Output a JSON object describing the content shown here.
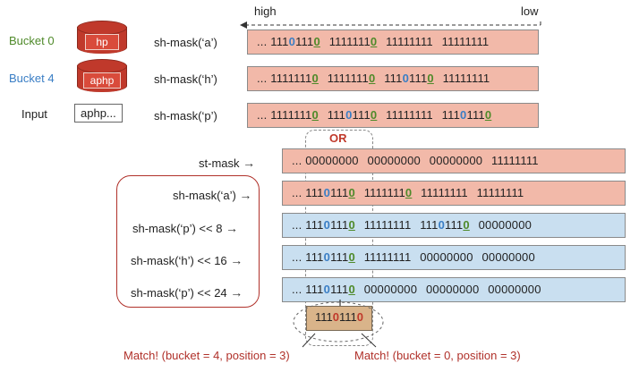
{
  "axis": {
    "high": "high",
    "low": "low"
  },
  "buckets": [
    {
      "label": "Bucket 0",
      "color": "#4f8a2a",
      "cyl_text": "hp"
    },
    {
      "label": "Bucket 4",
      "color": "#3a7ec5",
      "cyl_text": "aphp"
    }
  ],
  "input": {
    "label": "Input",
    "value": "aphp..."
  },
  "top_rows": [
    {
      "label": "sh-mask(‘a’)",
      "prefix": "...",
      "bytes": [
        "11101110",
        "11111110",
        "11111111",
        "11111111"
      ]
    },
    {
      "label": "sh-mask(‘h’)",
      "prefix": "...",
      "bytes": [
        "11111110",
        "11111110",
        "11101110",
        "11111111"
      ]
    },
    {
      "label": "sh-mask(‘p’)",
      "prefix": "...",
      "bytes": [
        "11111110",
        "11101110",
        "11111111",
        "11101110"
      ]
    }
  ],
  "or_label": "OR",
  "bottom_rows": [
    {
      "label": "st-mask",
      "arrow": "→",
      "prefix": "...",
      "bytes": [
        "00000000",
        "00000000",
        "00000000",
        "11111111"
      ],
      "color": "pink"
    },
    {
      "label": "sh-mask(‘a’)",
      "arrow": "→",
      "prefix": "...",
      "bytes": [
        "11101110",
        "11111110",
        "11111111",
        "11111111"
      ],
      "color": "pink"
    },
    {
      "label": "sh-mask(‘p’) << 8",
      "arrow": "→",
      "prefix": "...",
      "bytes": [
        "11101110",
        "11111111",
        "11101110",
        "00000000"
      ],
      "color": "blue"
    },
    {
      "label": "sh-mask(‘h’) << 16",
      "arrow": "→",
      "prefix": "...",
      "bytes": [
        "11101110",
        "11111111",
        "00000000",
        "00000000"
      ],
      "color": "blue"
    },
    {
      "label": "sh-mask(‘p’) << 24",
      "arrow": "→",
      "prefix": "...",
      "bytes": [
        "11101110",
        "00000000",
        "00000000",
        "00000000"
      ],
      "color": "blue"
    }
  ],
  "result": "11101110",
  "matches": [
    "Match! (bucket = 4, position = 3)",
    "Match! (bucket = 0, position = 3)"
  ]
}
